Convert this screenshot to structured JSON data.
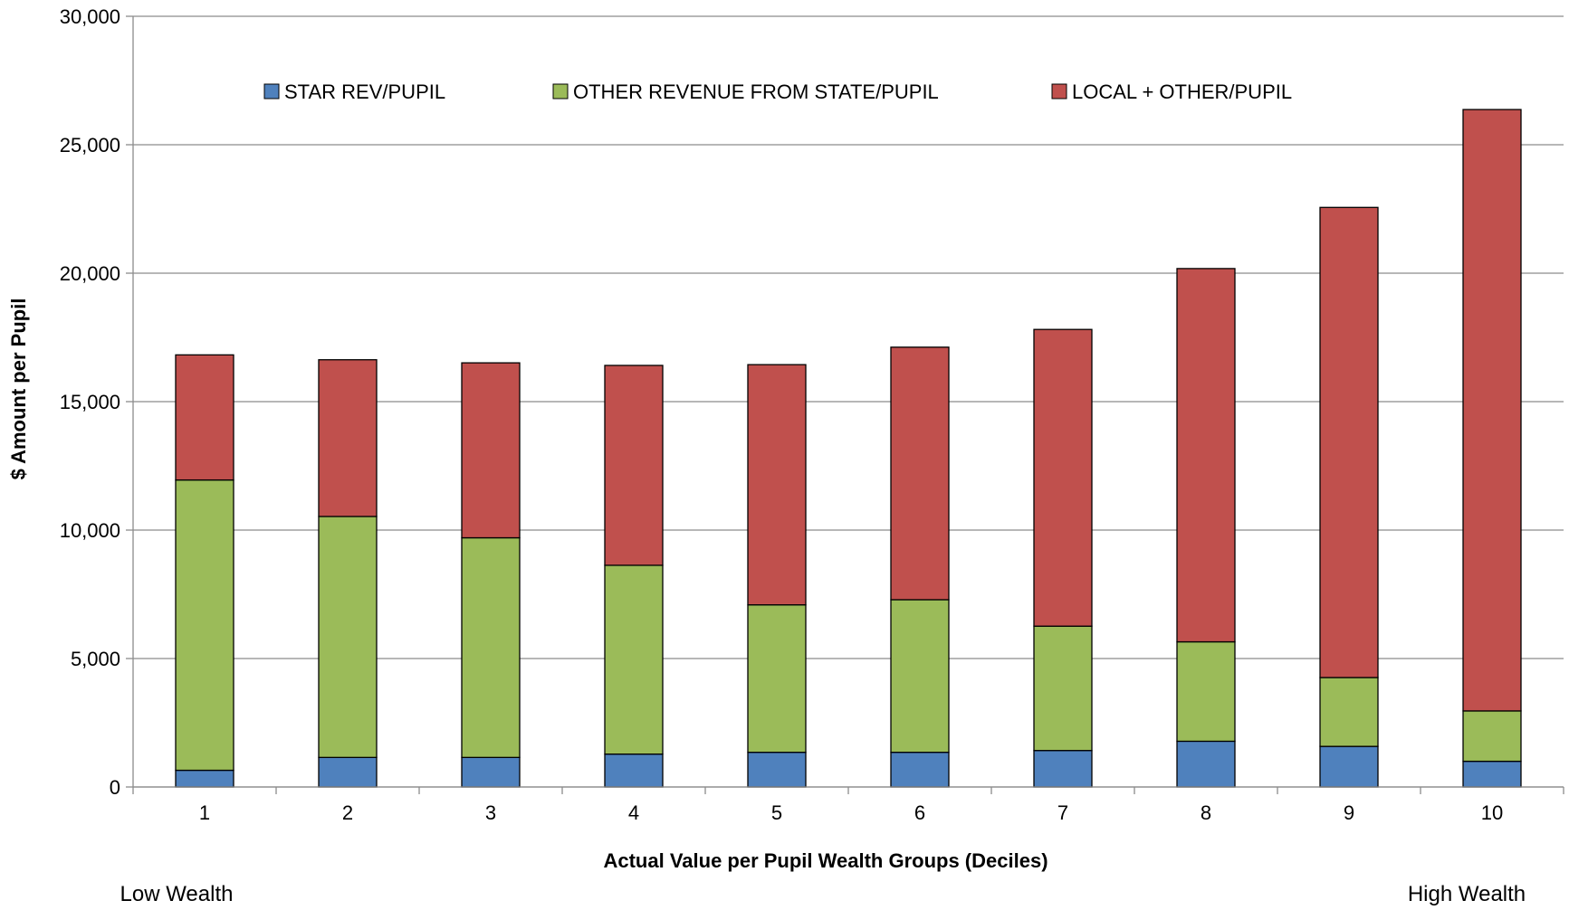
{
  "chart_data": {
    "type": "bar",
    "stacked": true,
    "categories": [
      "1",
      "2",
      "3",
      "4",
      "5",
      "6",
      "7",
      "8",
      "9",
      "10"
    ],
    "series": [
      {
        "name": "STAR REV/PUPIL",
        "color": "#4F81BD",
        "values": [
          650,
          1150,
          1150,
          1280,
          1350,
          1350,
          1420,
          1780,
          1580,
          1000
        ]
      },
      {
        "name": "OTHER REVENUE FROM STATE/PUPIL",
        "color": "#9BBB59",
        "values": [
          11300,
          9380,
          8550,
          7350,
          5740,
          5940,
          4840,
          3870,
          2680,
          1960
        ]
      },
      {
        "name": "LOCAL + OTHER/PUPIL",
        "color": "#C0504D",
        "values": [
          4870,
          6100,
          6810,
          7780,
          9350,
          9830,
          11550,
          14530,
          18300,
          23410
        ]
      }
    ],
    "ylim": [
      0,
      30000
    ],
    "yticks": [
      0,
      5000,
      10000,
      15000,
      20000,
      25000,
      30000
    ],
    "ytick_labels": [
      "0",
      "5,000",
      "10,000",
      "15,000",
      "20,000",
      "25,000",
      "30,000"
    ],
    "title": "",
    "xlabel": "Actual Value per Pupil Wealth Groups (Deciles)",
    "ylabel": "$ Amount per Pupil",
    "grid": true,
    "legend_position": "top",
    "annotations": {
      "left": "Low Wealth",
      "right": "High Wealth"
    }
  }
}
